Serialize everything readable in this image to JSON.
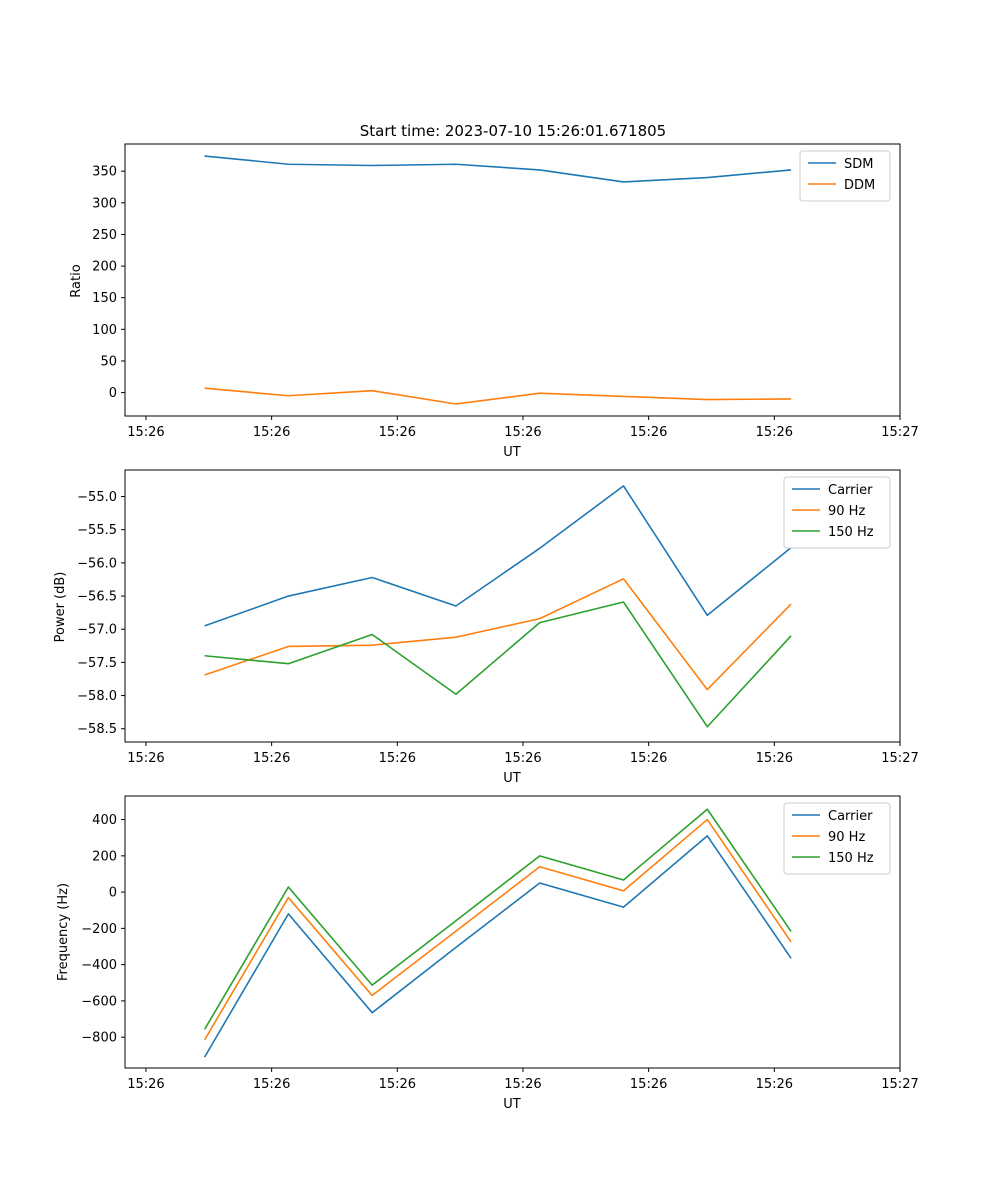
{
  "figure_title": "Start time: 2023-07-10 15:26:01.671805",
  "colors": {
    "blue": "#1f77b4",
    "orange": "#ff7f0e",
    "green": "#2ca02c"
  },
  "chart_data": [
    {
      "id": "ratio",
      "type": "line",
      "title": "Start time: 2023-07-10 15:26:01.671805",
      "xlabel": "UT",
      "ylabel": "Ratio",
      "xlim": [
        -0.75,
        8.5
      ],
      "ylim": [
        -37,
        393
      ],
      "x": [
        0.2,
        1.2,
        2.2,
        3.2,
        4.2,
        5.2,
        6.2,
        7.2
      ],
      "x_ticks": [
        {
          "pos": -0.5,
          "label": "15:26"
        },
        {
          "pos": 1.0,
          "label": "15:26"
        },
        {
          "pos": 2.5,
          "label": "15:26"
        },
        {
          "pos": 4.0,
          "label": "15:26"
        },
        {
          "pos": 5.5,
          "label": "15:26"
        },
        {
          "pos": 7.0,
          "label": "15:26"
        },
        {
          "pos": 8.5,
          "label": "15:27"
        }
      ],
      "y_ticks": [
        {
          "pos": 0,
          "label": "0"
        },
        {
          "pos": 50,
          "label": "50"
        },
        {
          "pos": 100,
          "label": "100"
        },
        {
          "pos": 150,
          "label": "150"
        },
        {
          "pos": 200,
          "label": "200"
        },
        {
          "pos": 250,
          "label": "250"
        },
        {
          "pos": 300,
          "label": "300"
        },
        {
          "pos": 350,
          "label": "350"
        }
      ],
      "legend_position": "top-right",
      "series": [
        {
          "name": "SDM",
          "color": "#1f77b4",
          "values": [
            374,
            361,
            359,
            361,
            352,
            333,
            340,
            352
          ]
        },
        {
          "name": "DDM",
          "color": "#ff7f0e",
          "values": [
            7,
            -5,
            3,
            -18,
            -1,
            -6,
            -11,
            -10
          ]
        }
      ]
    },
    {
      "id": "power",
      "type": "line",
      "title": "",
      "xlabel": "UT",
      "ylabel": "Power (dB)",
      "xlim": [
        -0.75,
        8.5
      ],
      "ylim": [
        -58.7,
        -54.6
      ],
      "x": [
        0.2,
        1.2,
        2.2,
        3.2,
        4.2,
        5.2,
        6.2,
        7.2
      ],
      "x_ticks": [
        {
          "pos": -0.5,
          "label": "15:26"
        },
        {
          "pos": 1.0,
          "label": "15:26"
        },
        {
          "pos": 2.5,
          "label": "15:26"
        },
        {
          "pos": 4.0,
          "label": "15:26"
        },
        {
          "pos": 5.5,
          "label": "15:26"
        },
        {
          "pos": 7.0,
          "label": "15:26"
        },
        {
          "pos": 8.5,
          "label": "15:27"
        }
      ],
      "y_ticks": [
        {
          "pos": -58.5,
          "label": "−58.5"
        },
        {
          "pos": -58.0,
          "label": "−58.0"
        },
        {
          "pos": -57.5,
          "label": "−57.5"
        },
        {
          "pos": -57.0,
          "label": "−57.0"
        },
        {
          "pos": -56.5,
          "label": "−56.5"
        },
        {
          "pos": -56.0,
          "label": "−56.0"
        },
        {
          "pos": -55.5,
          "label": "−55.5"
        },
        {
          "pos": -55.0,
          "label": "−55.0"
        }
      ],
      "legend_position": "top-right",
      "series": [
        {
          "name": "Carrier",
          "color": "#1f77b4",
          "values": [
            -56.95,
            -56.5,
            -56.22,
            -56.65,
            -55.78,
            -54.84,
            -56.79,
            -55.77
          ]
        },
        {
          "name": "90 Hz",
          "color": "#ff7f0e",
          "values": [
            -57.69,
            -57.26,
            -57.24,
            -57.12,
            -56.84,
            -56.24,
            -57.91,
            -56.62
          ]
        },
        {
          "name": "150 Hz",
          "color": "#2ca02c",
          "values": [
            -57.4,
            -57.52,
            -57.08,
            -57.98,
            -56.9,
            -56.59,
            -58.47,
            -57.1
          ]
        }
      ]
    },
    {
      "id": "frequency",
      "type": "line",
      "title": "",
      "xlabel": "UT",
      "ylabel": "Frequency (Hz)",
      "xlim": [
        -0.75,
        8.5
      ],
      "ylim": [
        -970,
        530
      ],
      "x": [
        0.2,
        1.2,
        2.2,
        3.2,
        4.2,
        5.2,
        6.2,
        7.2
      ],
      "x_ticks": [
        {
          "pos": -0.5,
          "label": "15:26"
        },
        {
          "pos": 1.0,
          "label": "15:26"
        },
        {
          "pos": 2.5,
          "label": "15:26"
        },
        {
          "pos": 4.0,
          "label": "15:26"
        },
        {
          "pos": 5.5,
          "label": "15:26"
        },
        {
          "pos": 7.0,
          "label": "15:26"
        },
        {
          "pos": 8.5,
          "label": "15:27"
        }
      ],
      "y_ticks": [
        {
          "pos": -800,
          "label": "−800"
        },
        {
          "pos": -600,
          "label": "−600"
        },
        {
          "pos": -400,
          "label": "−400"
        },
        {
          "pos": -200,
          "label": "−200"
        },
        {
          "pos": 0,
          "label": "0"
        },
        {
          "pos": 200,
          "label": "200"
        },
        {
          "pos": 400,
          "label": "400"
        }
      ],
      "legend_position": "top-right",
      "series": [
        {
          "name": "Carrier",
          "color": "#1f77b4",
          "values": [
            -910,
            -120,
            -665,
            -305,
            50,
            -83,
            310,
            -365
          ]
        },
        {
          "name": "90 Hz",
          "color": "#ff7f0e",
          "values": [
            -815,
            -30,
            -570,
            -215,
            140,
            7,
            400,
            -275
          ]
        },
        {
          "name": "150 Hz",
          "color": "#2ca02c",
          "values": [
            -757,
            28,
            -513,
            -158,
            200,
            67,
            457,
            -217
          ]
        }
      ]
    }
  ]
}
